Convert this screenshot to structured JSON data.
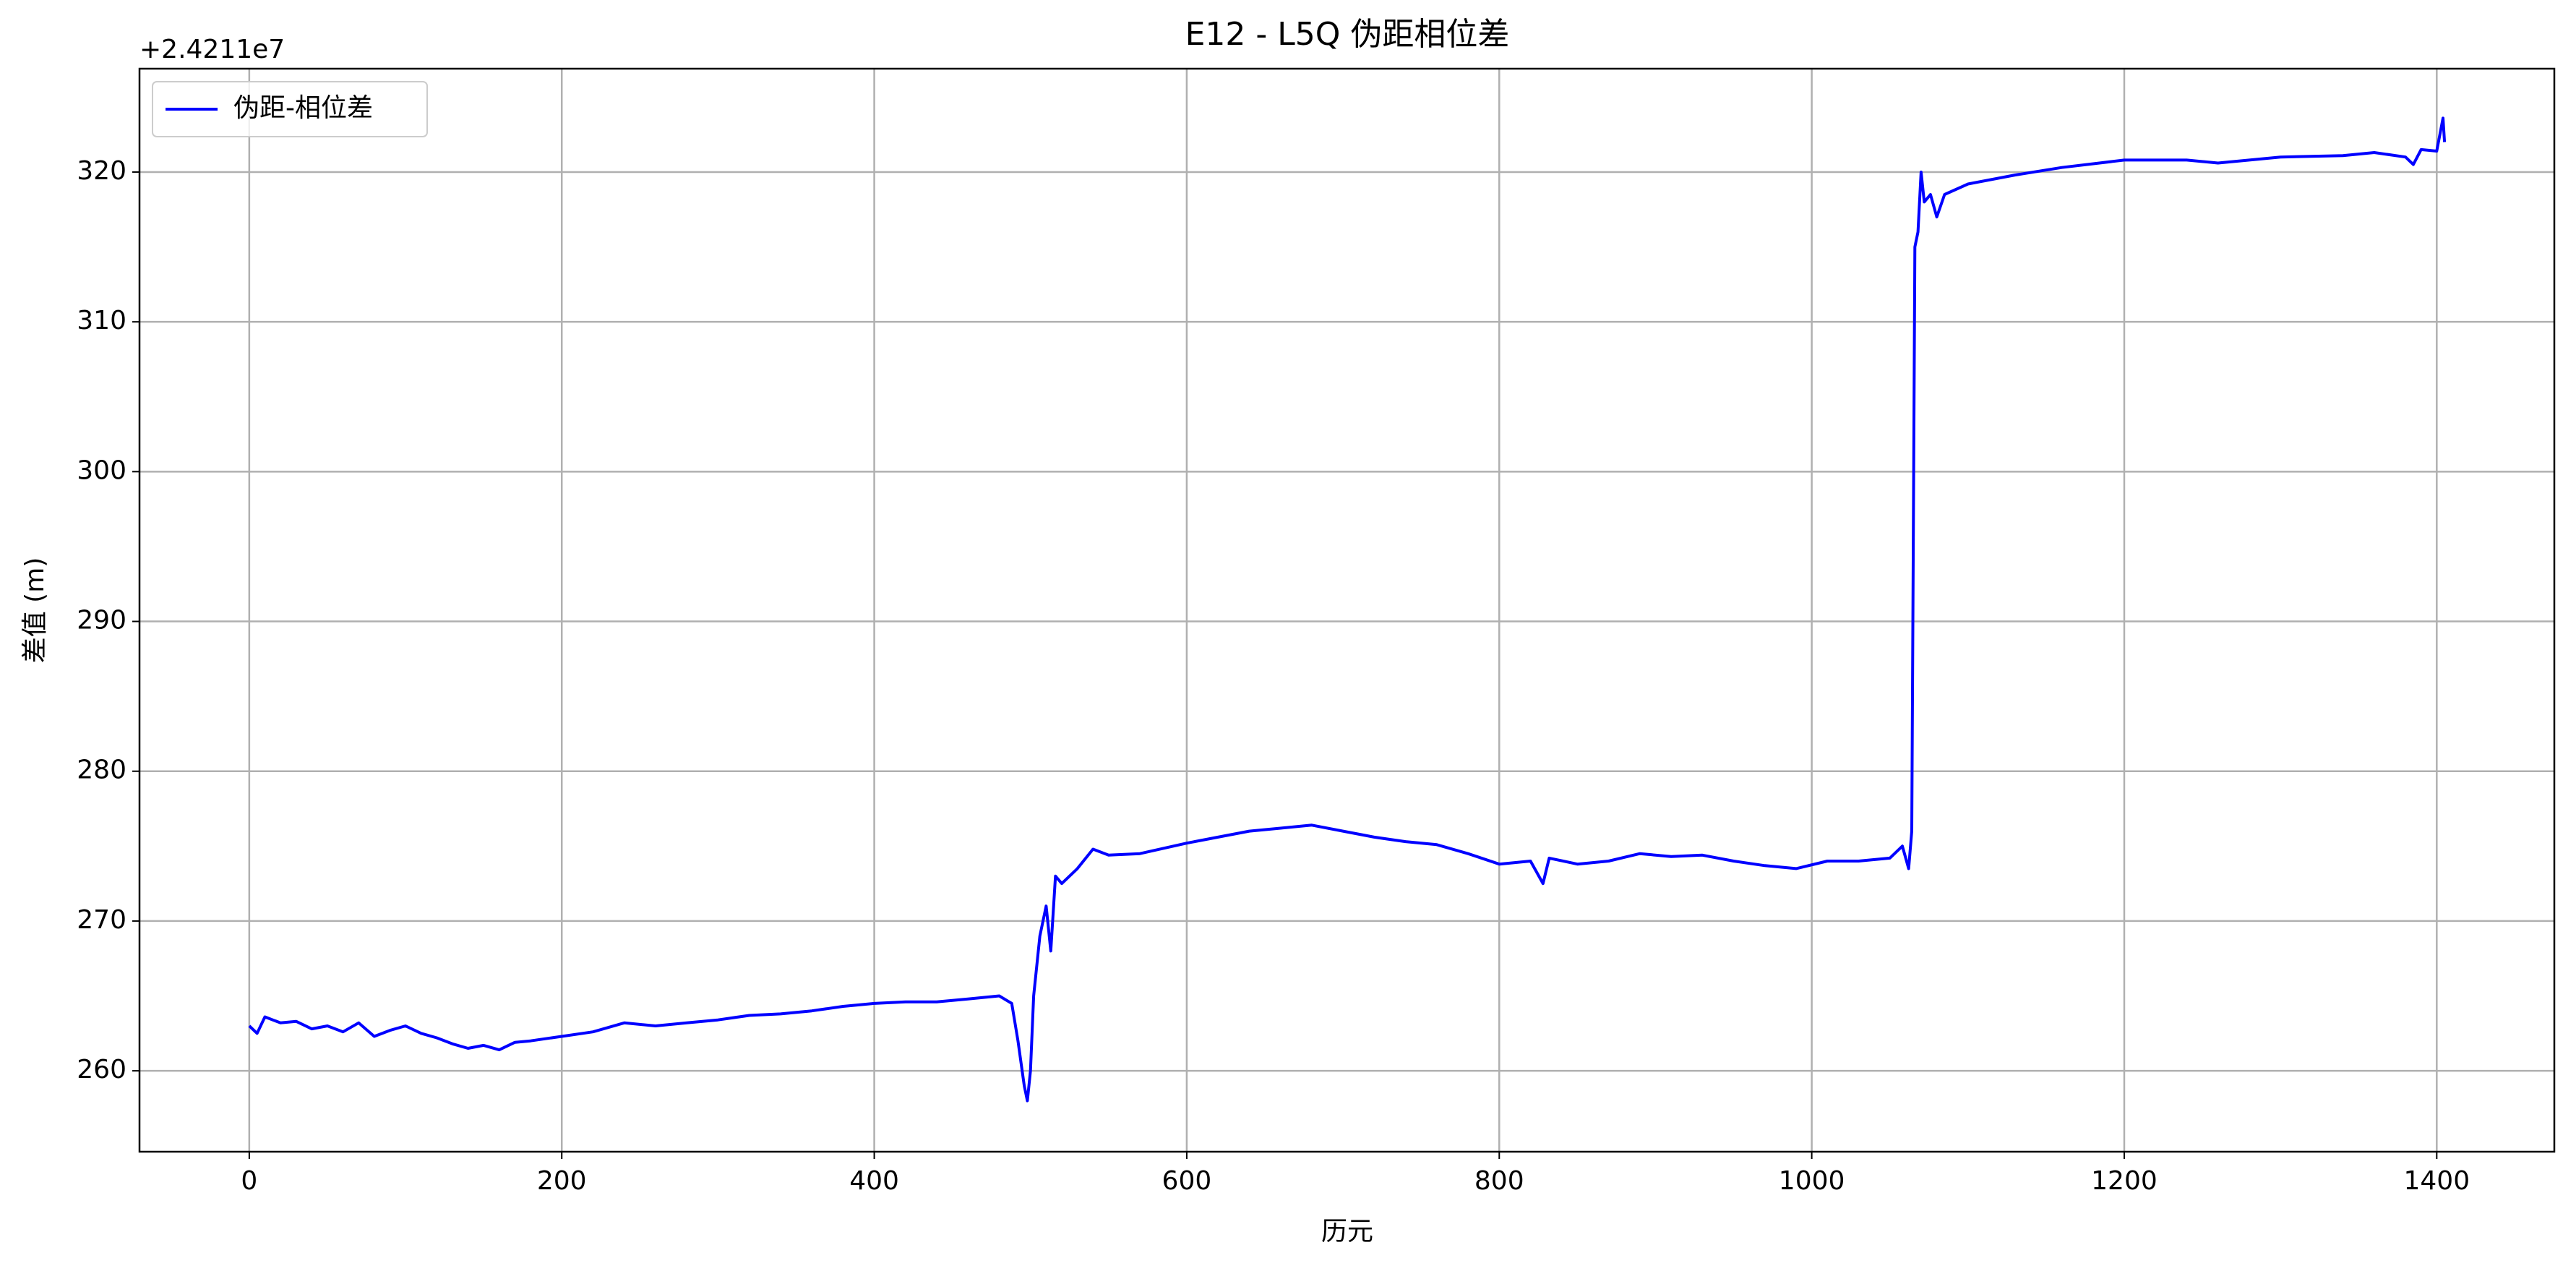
{
  "chart_data": {
    "type": "line",
    "title": "E12 - L5Q 伪距相位差",
    "xlabel": "历元",
    "ylabel": "差值 (m)",
    "y_offset_label": "+2.4211e7",
    "legend": "upper left",
    "grid": true,
    "xlim": [
      -70.25,
      1475.25
    ],
    "ylim": [
      254.6,
      326.9
    ],
    "xticks": [
      0,
      200,
      400,
      600,
      800,
      1000,
      1200,
      1400
    ],
    "yticks": [
      260,
      270,
      280,
      290,
      300,
      310,
      320
    ],
    "series": [
      {
        "name": "伪距-相位差",
        "color": "#0000ff",
        "x": [
          0,
          5,
          10,
          20,
          30,
          40,
          50,
          60,
          70,
          80,
          90,
          100,
          110,
          120,
          130,
          140,
          150,
          160,
          170,
          180,
          200,
          220,
          240,
          260,
          280,
          300,
          320,
          340,
          360,
          380,
          400,
          420,
          440,
          460,
          480,
          488,
          492,
          496,
          498,
          500,
          502,
          506,
          510,
          513,
          516,
          520,
          530,
          540,
          550,
          570,
          600,
          620,
          640,
          660,
          680,
          700,
          720,
          740,
          760,
          780,
          800,
          820,
          828,
          832,
          850,
          870,
          890,
          910,
          930,
          950,
          970,
          990,
          1010,
          1030,
          1050,
          1058,
          1062,
          1064,
          1066,
          1068,
          1070,
          1072,
          1076,
          1080,
          1085,
          1100,
          1130,
          1160,
          1200,
          1240,
          1260,
          1300,
          1340,
          1360,
          1380,
          1385,
          1390,
          1400,
          1404,
          1405
        ],
        "values": [
          263,
          262.5,
          263.6,
          263.2,
          263.3,
          262.8,
          263,
          262.6,
          263.2,
          262.3,
          262.7,
          263,
          262.5,
          262.2,
          261.8,
          261.5,
          261.7,
          261.4,
          261.9,
          262,
          262.3,
          262.6,
          263.2,
          263,
          263.2,
          263.4,
          263.7,
          263.8,
          264,
          264.3,
          264.5,
          264.6,
          264.6,
          264.8,
          265,
          264.5,
          262,
          259,
          258,
          260,
          265,
          269,
          271,
          268,
          273,
          272.5,
          273.5,
          274.8,
          274.4,
          274.5,
          275.2,
          275.6,
          276,
          276.2,
          276.4,
          276,
          275.6,
          275.3,
          275.1,
          274.5,
          273.8,
          274,
          272.5,
          274.2,
          273.8,
          274,
          274.5,
          274.3,
          274.4,
          274,
          273.7,
          273.5,
          274,
          274,
          274.2,
          275,
          273.5,
          276,
          315,
          316,
          320,
          318,
          318.5,
          317,
          318.5,
          319.2,
          319.8,
          320.3,
          320.8,
          320.8,
          320.6,
          321,
          321.1,
          321.3,
          321,
          320.5,
          321.5,
          321.4,
          323.6,
          322
        ]
      }
    ]
  }
}
